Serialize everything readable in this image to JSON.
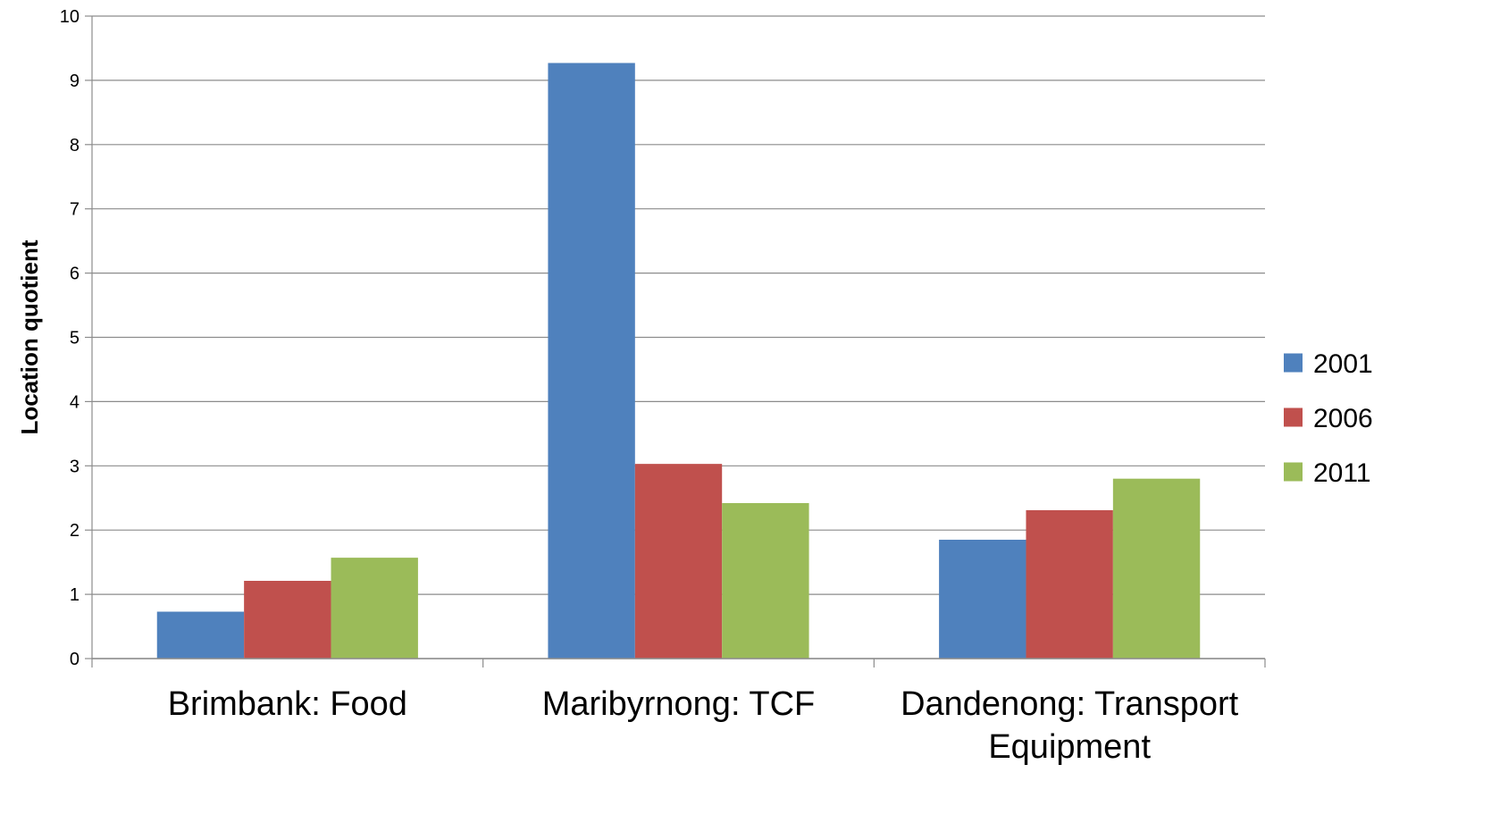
{
  "chart_data": {
    "type": "bar",
    "title": "",
    "xlabel": "",
    "ylabel": "Location quotient",
    "ylim": [
      0,
      10
    ],
    "yticks": [
      0,
      1,
      2,
      3,
      4,
      5,
      6,
      7,
      8,
      9,
      10
    ],
    "grid": true,
    "legend_position": "right",
    "categories": [
      [
        "Brimbank: Food"
      ],
      [
        "Maribyrnong: TCF"
      ],
      [
        "Dandenong: Transport",
        "Equipment"
      ]
    ],
    "series": [
      {
        "name": "2001",
        "color": "#4F81BD",
        "values": [
          0.73,
          9.27,
          1.85
        ]
      },
      {
        "name": "2006",
        "color": "#C0504D",
        "values": [
          1.21,
          3.03,
          2.31
        ]
      },
      {
        "name": "2011",
        "color": "#9BBB59",
        "values": [
          1.57,
          2.42,
          2.8
        ]
      }
    ]
  }
}
